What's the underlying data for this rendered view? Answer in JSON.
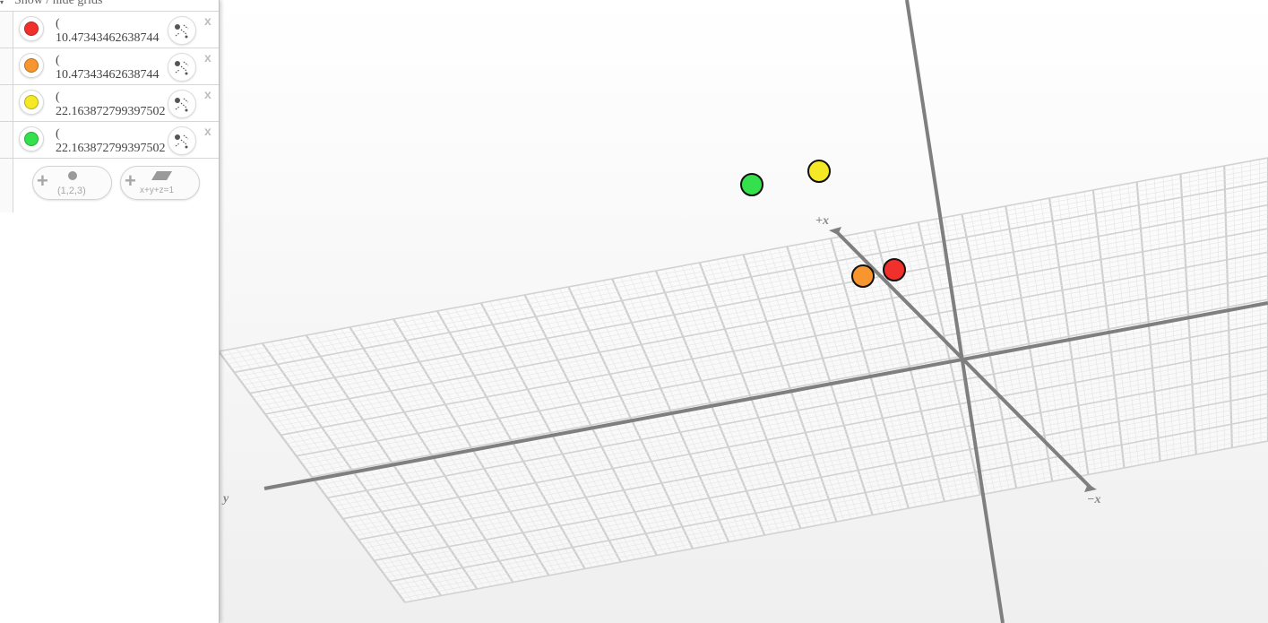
{
  "sidebar": {
    "grid_toggle": {
      "caret": "▾",
      "label": "Show / hide grids"
    },
    "expressions": [
      {
        "open": "(",
        "value": "10.47343462638744",
        "color": "#f1302b",
        "close": "x"
      },
      {
        "open": "(",
        "value": "10.47343462638744",
        "color": "#f7952e",
        "close": "x"
      },
      {
        "open": "(",
        "value": "22.163872799397502",
        "color": "#f5e825",
        "close": "x"
      },
      {
        "open": "(",
        "value": "22.163872799397502",
        "color": "#34e04c",
        "close": "x"
      }
    ],
    "add_point": {
      "plus": "+",
      "caption": "(1,2,3)"
    },
    "add_plane": {
      "plus": "+",
      "caption": "x+y+z=1"
    }
  },
  "scene": {
    "axis_labels": {
      "pos_x": "+x",
      "neg_x": "−x",
      "pos_y": "y"
    },
    "points": [
      {
        "name": "red",
        "color": "#f1302b"
      },
      {
        "name": "orange",
        "color": "#f7952e"
      },
      {
        "name": "yellow",
        "color": "#f5e825"
      },
      {
        "name": "green",
        "color": "#34e04c"
      }
    ]
  }
}
